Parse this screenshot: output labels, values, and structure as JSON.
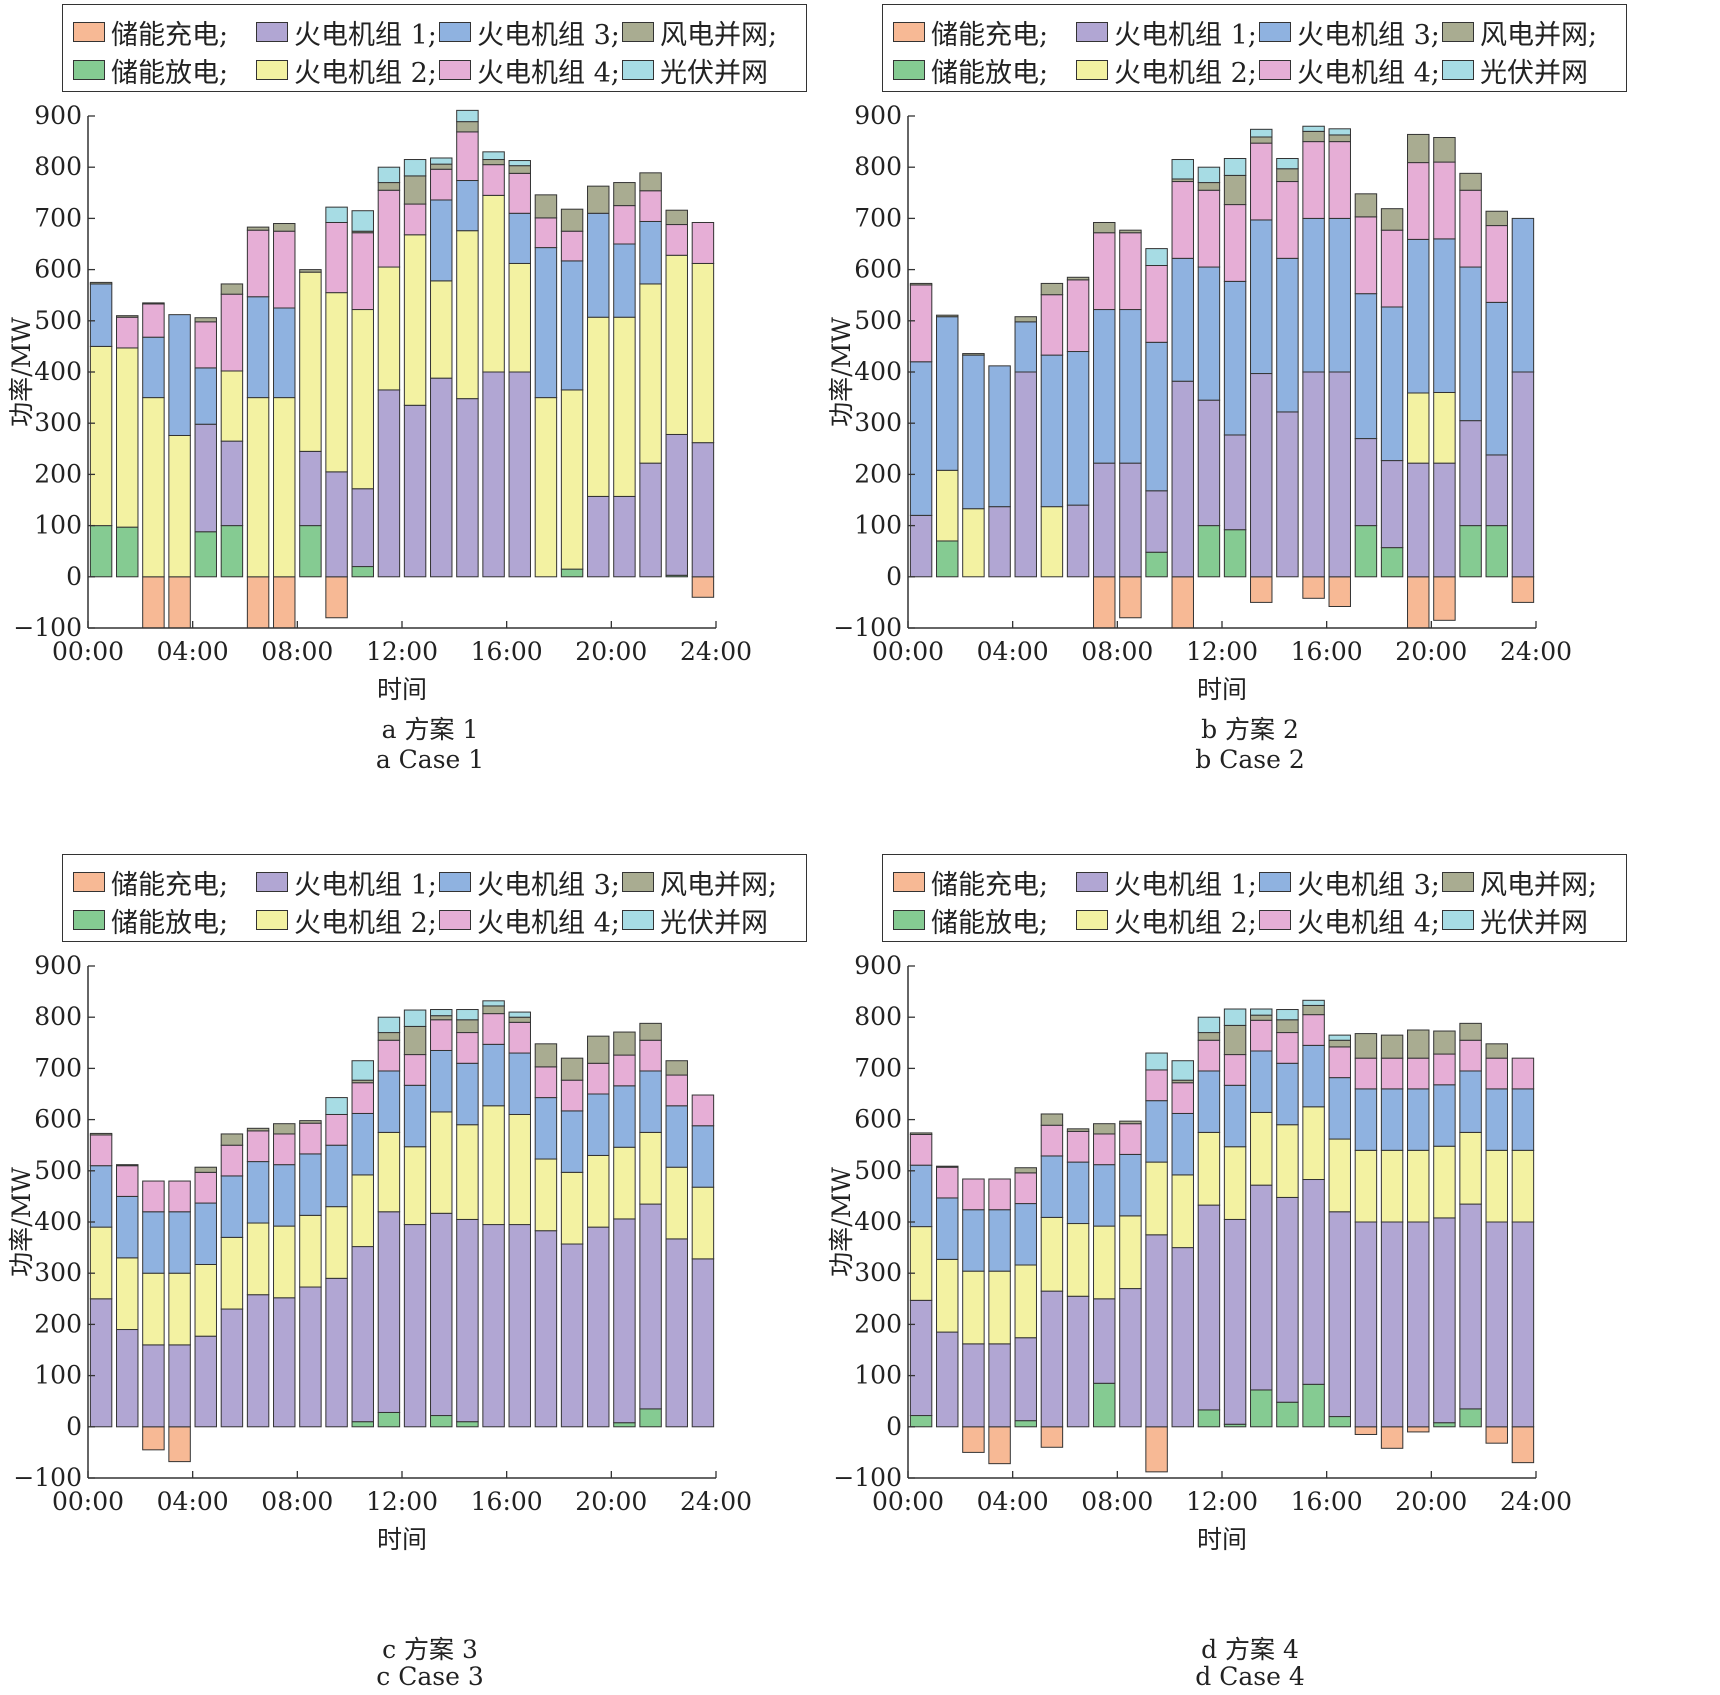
{
  "legend": {
    "row1": [
      "储能充电;",
      "火电机组 1;",
      "火电机组 3;",
      "风电并网;"
    ],
    "row2": [
      "储能放电;",
      "火电机组 2;",
      "火电机组 4;",
      "光伏并网"
    ]
  },
  "colors": {
    "charge": "#f7b995",
    "discharge": "#85cb92",
    "g1": "#b1a6d3",
    "g2": "#f3f2a2",
    "g3": "#8fb2e0",
    "g4": "#e6aed6",
    "wind": "#a9ac91",
    "pv": "#a7dce4"
  },
  "chart_data": [
    {
      "id": "a",
      "type": "bar",
      "stacked": true,
      "caption_cn": "a  方案 1",
      "caption_en": "a  Case 1",
      "xlabel": "时间",
      "ylabel": "功率/MW",
      "ylim": [
        -100,
        900
      ],
      "yticks": [
        "−100",
        "0",
        "100",
        "200",
        "300",
        "400",
        "500",
        "600",
        "700",
        "800",
        "900"
      ],
      "xticks": [
        "00:00",
        "04:00",
        "08:00",
        "12:00",
        "16:00",
        "20:00",
        "24:00"
      ],
      "hours": [
        1,
        2,
        3,
        4,
        5,
        6,
        7,
        8,
        9,
        10,
        11,
        12,
        13,
        14,
        15,
        16,
        17,
        18,
        19,
        20,
        21,
        22,
        23,
        24
      ],
      "series": {
        "charge": [
          0,
          0,
          -100,
          -100,
          0,
          0,
          -100,
          -100,
          0,
          -80,
          0,
          0,
          0,
          0,
          0,
          0,
          0,
          0,
          0,
          0,
          0,
          0,
          0,
          -40
        ],
        "discharge": [
          100,
          97,
          0,
          0,
          88,
          100,
          0,
          0,
          100,
          0,
          20,
          0,
          0,
          0,
          0,
          0,
          0,
          0,
          15,
          0,
          0,
          0,
          3,
          0
        ],
        "g1": [
          0,
          0,
          0,
          0,
          210,
          165,
          0,
          0,
          145,
          205,
          152,
          365,
          335,
          388,
          348,
          400,
          400,
          0,
          0,
          157,
          157,
          222,
          275,
          262
        ],
        "g2": [
          350,
          350,
          350,
          276,
          0,
          137,
          350,
          350,
          350,
          350,
          350,
          240,
          333,
          190,
          328,
          345,
          212,
          350,
          350,
          350,
          350,
          350,
          350,
          350
        ],
        "g3": [
          122,
          0,
          118,
          236,
          110,
          0,
          197,
          175,
          0,
          0,
          0,
          0,
          0,
          158,
          98,
          0,
          98,
          293,
          252,
          203,
          143,
          122,
          0,
          0
        ],
        "g4": [
          0,
          60,
          65,
          0,
          90,
          150,
          130,
          150,
          0,
          137,
          150,
          150,
          60,
          60,
          95,
          60,
          78,
          58,
          58,
          0,
          75,
          60,
          60,
          80
        ],
        "wind": [
          3,
          3,
          2,
          0,
          8,
          20,
          6,
          15,
          5,
          0,
          3,
          15,
          55,
          10,
          20,
          10,
          15,
          45,
          43,
          53,
          45,
          35,
          28,
          0
        ],
        "pv": [
          0,
          0,
          0,
          0,
          0,
          0,
          0,
          0,
          0,
          30,
          40,
          30,
          32,
          12,
          22,
          15,
          10,
          0,
          0,
          0,
          0,
          0,
          0,
          0
        ]
      }
    },
    {
      "id": "b",
      "type": "bar",
      "stacked": true,
      "caption_cn": "b  方案 2",
      "caption_en": "b  Case 2",
      "xlabel": "时间",
      "ylabel": "功率/MW",
      "ylim": [
        -100,
        900
      ],
      "yticks": [
        "−100",
        "0",
        "100",
        "200",
        "300",
        "400",
        "500",
        "600",
        "700",
        "800",
        "900"
      ],
      "xticks": [
        "00:00",
        "04:00",
        "08:00",
        "12:00",
        "16:00",
        "20:00",
        "24:00"
      ],
      "hours": [
        1,
        2,
        3,
        4,
        5,
        6,
        7,
        8,
        9,
        10,
        11,
        12,
        13,
        14,
        15,
        16,
        17,
        18,
        19,
        20,
        21,
        22,
        23,
        24
      ],
      "series": {
        "charge": [
          0,
          0,
          0,
          0,
          0,
          0,
          0,
          -100,
          -80,
          0,
          -100,
          0,
          0,
          -50,
          0,
          -42,
          -58,
          0,
          0,
          -100,
          -85,
          0,
          0,
          -50
        ],
        "discharge": [
          0,
          70,
          0,
          0,
          0,
          0,
          0,
          0,
          0,
          48,
          0,
          100,
          92,
          0,
          0,
          0,
          0,
          100,
          57,
          0,
          0,
          100,
          100,
          0
        ],
        "g1": [
          120,
          0,
          0,
          137,
          400,
          0,
          140,
          222,
          222,
          120,
          382,
          245,
          185,
          397,
          322,
          400,
          400,
          170,
          170,
          222,
          222,
          205,
          138,
          400
        ],
        "g2": [
          0,
          138,
          133,
          0,
          0,
          137,
          0,
          0,
          0,
          0,
          0,
          0,
          0,
          0,
          0,
          0,
          0,
          0,
          0,
          137,
          138,
          0,
          0,
          0
        ],
        "g3": [
          300,
          300,
          300,
          275,
          98,
          296,
          300,
          300,
          300,
          290,
          240,
          260,
          300,
          300,
          300,
          300,
          300,
          283,
          300,
          300,
          300,
          300,
          298,
          300
        ],
        "g4": [
          150,
          0,
          0,
          0,
          0,
          118,
          140,
          150,
          150,
          150,
          150,
          150,
          150,
          150,
          150,
          150,
          150,
          150,
          150,
          150,
          150,
          150,
          150,
          0
        ],
        "wind": [
          3,
          3,
          3,
          0,
          10,
          22,
          5,
          20,
          5,
          0,
          5,
          15,
          57,
          12,
          25,
          20,
          13,
          45,
          42,
          55,
          48,
          33,
          28,
          0
        ],
        "pv": [
          0,
          0,
          0,
          0,
          0,
          0,
          0,
          0,
          0,
          33,
          38,
          30,
          33,
          15,
          20,
          10,
          12,
          0,
          0,
          0,
          0,
          0,
          0,
          0
        ]
      }
    },
    {
      "id": "c",
      "type": "bar",
      "stacked": true,
      "caption_cn": "c  方案 3",
      "caption_en": "c  Case 3",
      "xlabel": "时间",
      "ylabel": "功率/MW",
      "ylim": [
        -100,
        900
      ],
      "yticks": [
        "−100",
        "0",
        "100",
        "200",
        "300",
        "400",
        "500",
        "600",
        "700",
        "800",
        "900"
      ],
      "xticks": [
        "00:00",
        "04:00",
        "08:00",
        "12:00",
        "16:00",
        "20:00",
        "24:00"
      ],
      "hours": [
        1,
        2,
        3,
        4,
        5,
        6,
        7,
        8,
        9,
        10,
        11,
        12,
        13,
        14,
        15,
        16,
        17,
        18,
        19,
        20,
        21,
        22,
        23,
        24
      ],
      "series": {
        "charge": [
          0,
          0,
          -45,
          -68,
          0,
          0,
          0,
          0,
          0,
          0,
          0,
          0,
          0,
          0,
          0,
          0,
          0,
          0,
          0,
          0,
          0,
          0,
          0,
          0
        ],
        "discharge": [
          0,
          0,
          0,
          0,
          0,
          0,
          0,
          0,
          0,
          0,
          10,
          28,
          0,
          22,
          10,
          0,
          0,
          0,
          0,
          0,
          8,
          35,
          0,
          0
        ],
        "g1": [
          250,
          190,
          160,
          160,
          177,
          230,
          258,
          252,
          273,
          290,
          342,
          392,
          395,
          395,
          395,
          395,
          395,
          383,
          357,
          390,
          398,
          400,
          367,
          328
        ],
        "g2": [
          140,
          140,
          140,
          140,
          140,
          140,
          140,
          140,
          140,
          140,
          140,
          155,
          152,
          198,
          185,
          232,
          215,
          140,
          140,
          140,
          140,
          140,
          140,
          140
        ],
        "g3": [
          120,
          120,
          120,
          120,
          120,
          120,
          120,
          120,
          120,
          120,
          120,
          120,
          120,
          120,
          120,
          120,
          120,
          120,
          120,
          120,
          120,
          120,
          120,
          120
        ],
        "g4": [
          60,
          60,
          60,
          60,
          60,
          60,
          60,
          60,
          60,
          60,
          60,
          60,
          60,
          60,
          60,
          60,
          60,
          60,
          60,
          60,
          60,
          60,
          60,
          60
        ],
        "wind": [
          3,
          2,
          0,
          0,
          10,
          22,
          5,
          20,
          5,
          0,
          5,
          15,
          55,
          8,
          25,
          15,
          10,
          45,
          43,
          53,
          45,
          33,
          28,
          0
        ],
        "pv": [
          0,
          0,
          0,
          0,
          0,
          0,
          0,
          0,
          0,
          33,
          38,
          30,
          32,
          12,
          20,
          10,
          10,
          0,
          0,
          0,
          0,
          0,
          0,
          0
        ]
      }
    },
    {
      "id": "d",
      "type": "bar",
      "stacked": true,
      "caption_cn": "d  方案 4",
      "caption_en": "d  Case 4",
      "xlabel": "时间",
      "ylabel": "功率/MW",
      "ylim": [
        -100,
        900
      ],
      "yticks": [
        "−100",
        "0",
        "100",
        "200",
        "300",
        "400",
        "500",
        "600",
        "700",
        "800",
        "900"
      ],
      "xticks": [
        "00:00",
        "04:00",
        "08:00",
        "12:00",
        "16:00",
        "20:00",
        "24:00"
      ],
      "hours": [
        1,
        2,
        3,
        4,
        5,
        6,
        7,
        8,
        9,
        10,
        11,
        12,
        13,
        14,
        15,
        16,
        17,
        18,
        19,
        20,
        21,
        22,
        23,
        24
      ],
      "series": {
        "charge": [
          0,
          0,
          -50,
          -72,
          0,
          -40,
          0,
          0,
          0,
          -88,
          0,
          0,
          0,
          0,
          0,
          0,
          0,
          -15,
          -42,
          -10,
          0,
          0,
          -32,
          -70
        ],
        "discharge": [
          22,
          0,
          0,
          0,
          12,
          0,
          0,
          85,
          0,
          0,
          0,
          33,
          5,
          72,
          48,
          83,
          20,
          0,
          0,
          0,
          8,
          35,
          0,
          0
        ],
        "g1": [
          225,
          185,
          162,
          162,
          162,
          265,
          255,
          165,
          270,
          375,
          350,
          400,
          400,
          400,
          400,
          400,
          400,
          400,
          400,
          400,
          400,
          400,
          400,
          400
        ],
        "g2": [
          144,
          142,
          142,
          142,
          142,
          144,
          142,
          142,
          142,
          142,
          142,
          142,
          142,
          142,
          142,
          142,
          142,
          140,
          140,
          140,
          140,
          140,
          140,
          140
        ],
        "g3": [
          120,
          120,
          120,
          120,
          120,
          120,
          120,
          120,
          120,
          120,
          120,
          120,
          120,
          120,
          120,
          120,
          120,
          120,
          120,
          120,
          120,
          120,
          120,
          120
        ],
        "g4": [
          60,
          60,
          60,
          60,
          60,
          60,
          60,
          60,
          60,
          60,
          60,
          60,
          60,
          60,
          60,
          60,
          60,
          60,
          60,
          60,
          60,
          60,
          60,
          60
        ],
        "wind": [
          3,
          2,
          0,
          0,
          10,
          22,
          5,
          20,
          5,
          0,
          5,
          15,
          57,
          10,
          25,
          18,
          13,
          48,
          45,
          55,
          45,
          33,
          28,
          0
        ],
        "pv": [
          0,
          0,
          0,
          0,
          0,
          0,
          0,
          0,
          0,
          33,
          38,
          30,
          32,
          12,
          20,
          10,
          10,
          0,
          0,
          0,
          0,
          0,
          0,
          0
        ]
      }
    }
  ]
}
